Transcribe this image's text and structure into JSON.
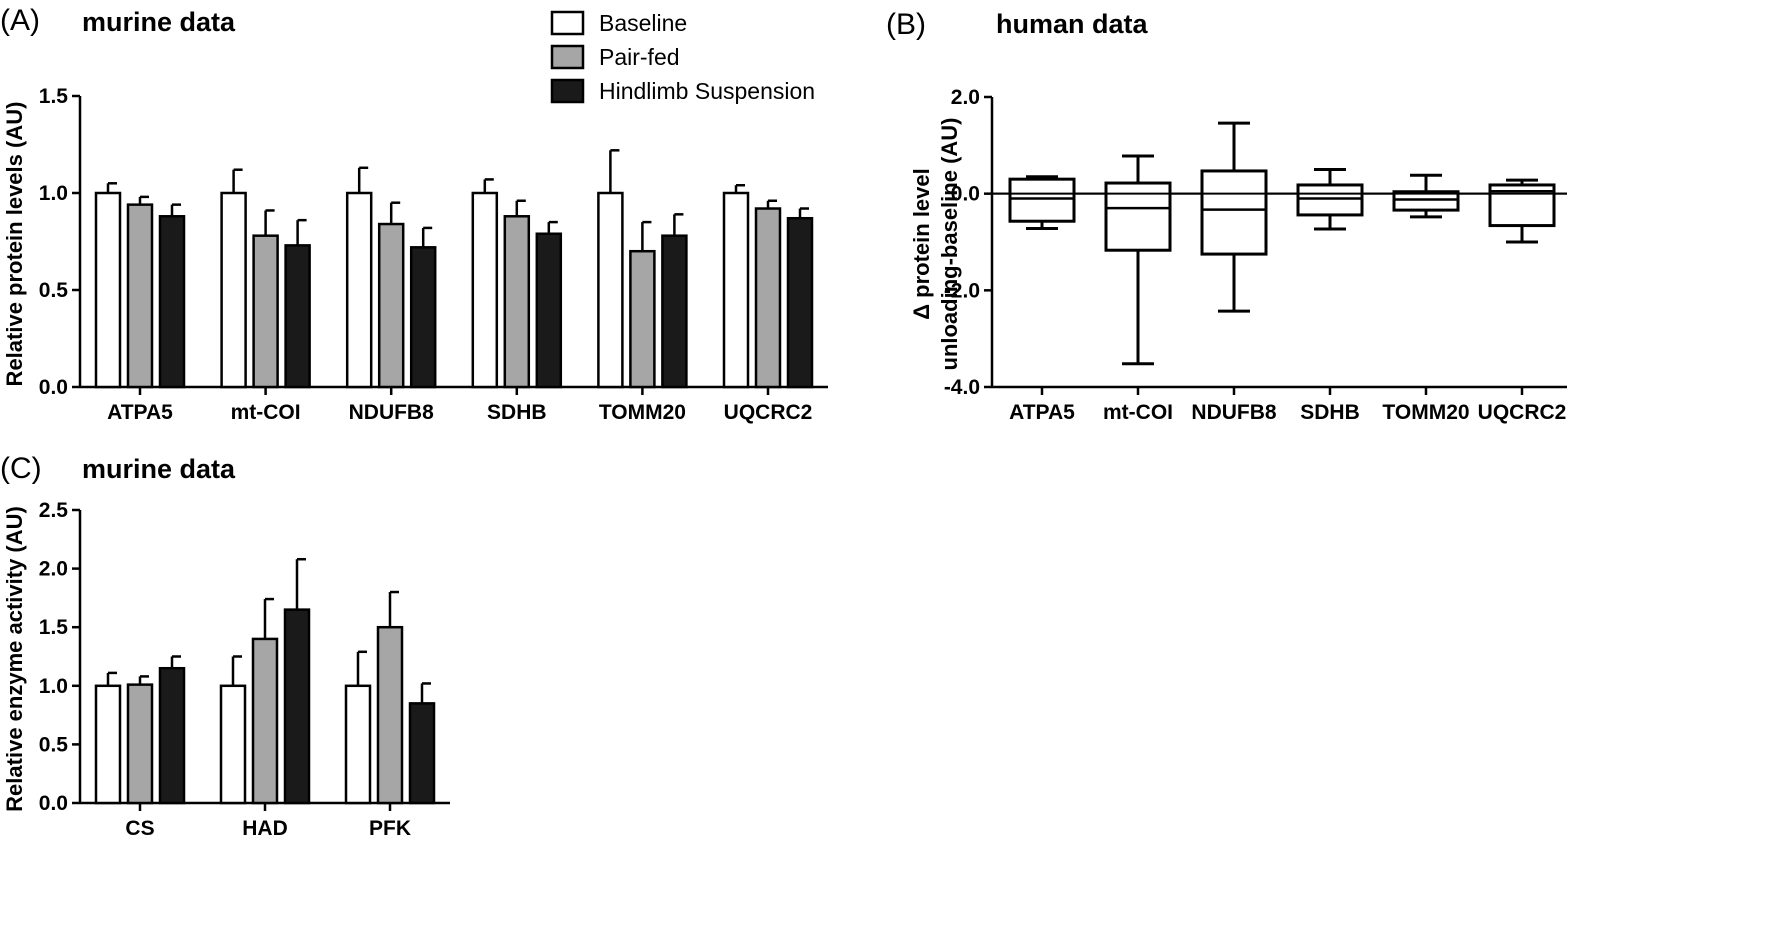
{
  "legend": [
    {
      "label": "Baseline",
      "color": "#ffffff"
    },
    {
      "label": "Pair-fed",
      "color": "#a6a6a6"
    },
    {
      "label": "Hindlimb Suspension",
      "color": "#1a1a1a"
    }
  ],
  "panels": {
    "A": {
      "letter": "(A)",
      "title": "murine data"
    },
    "B": {
      "letter": "(B)",
      "title": "human data"
    },
    "C": {
      "letter": "(C)",
      "title": "murine data"
    }
  },
  "chart_data": [
    {
      "id": "A",
      "type": "bar",
      "title": "murine data",
      "ylabel": "Relative protein levels (AU)",
      "xlabel": "",
      "ylim": [
        0,
        1.5
      ],
      "yticks": [
        "0.0",
        "0.5",
        "1.0",
        "1.5"
      ],
      "categories": [
        "ATPA5",
        "mt-COI",
        "NDUFB8",
        "SDHB",
        "TOMM20",
        "UQCRC2"
      ],
      "series": [
        {
          "name": "Baseline",
          "values": [
            1.0,
            1.0,
            1.0,
            1.0,
            1.0,
            1.0
          ],
          "err": [
            0.05,
            0.12,
            0.13,
            0.07,
            0.22,
            0.04
          ]
        },
        {
          "name": "Pair-fed",
          "values": [
            0.94,
            0.78,
            0.84,
            0.88,
            0.7,
            0.92
          ],
          "err": [
            0.04,
            0.13,
            0.11,
            0.08,
            0.15,
            0.04
          ]
        },
        {
          "name": "Hindlimb Suspension",
          "values": [
            0.88,
            0.73,
            0.72,
            0.79,
            0.78,
            0.87
          ],
          "err": [
            0.06,
            0.13,
            0.1,
            0.06,
            0.11,
            0.05
          ]
        }
      ]
    },
    {
      "id": "B",
      "type": "box",
      "title": "human data",
      "ylabel": "Δ protein level\nunloading-baseline (AU)",
      "xlabel": "",
      "ylim": [
        -4.0,
        2.0
      ],
      "yticks": [
        "-4.0",
        "-2.0",
        "0.0",
        "2.0"
      ],
      "categories": [
        "ATPA5",
        "mt-COI",
        "NDUFB8",
        "SDHB",
        "TOMM20",
        "UQCRC2"
      ],
      "boxes": [
        {
          "min": -0.72,
          "q1": -0.57,
          "median": -0.1,
          "q3": 0.3,
          "max": 0.35
        },
        {
          "min": -3.52,
          "q1": -1.17,
          "median": -0.3,
          "q3": 0.22,
          "max": 0.78
        },
        {
          "min": -2.43,
          "q1": -1.25,
          "median": -0.33,
          "q3": 0.47,
          "max": 1.46
        },
        {
          "min": -0.73,
          "q1": -0.44,
          "median": -0.1,
          "q3": 0.18,
          "max": 0.5
        },
        {
          "min": -0.48,
          "q1": -0.34,
          "median": -0.12,
          "q3": 0.04,
          "max": 0.38
        },
        {
          "min": -1.0,
          "q1": -0.66,
          "median": 0.05,
          "q3": 0.18,
          "max": 0.28
        }
      ]
    },
    {
      "id": "C",
      "type": "bar",
      "title": "murine data",
      "ylabel": "Relative enzyme activity (AU)",
      "xlabel": "",
      "ylim": [
        0,
        2.5
      ],
      "yticks": [
        "0.0",
        "0.5",
        "1.0",
        "1.5",
        "2.0",
        "2.5"
      ],
      "categories": [
        "CS",
        "HAD",
        "PFK"
      ],
      "series": [
        {
          "name": "Baseline",
          "values": [
            1.0,
            1.0,
            1.0
          ],
          "err": [
            0.11,
            0.25,
            0.29
          ]
        },
        {
          "name": "Pair-fed",
          "values": [
            1.01,
            1.4,
            1.5
          ],
          "err": [
            0.07,
            0.34,
            0.3
          ]
        },
        {
          "name": "Hindlimb Suspension",
          "values": [
            1.15,
            1.65,
            0.85
          ],
          "err": [
            0.1,
            0.43,
            0.17
          ]
        }
      ]
    }
  ]
}
